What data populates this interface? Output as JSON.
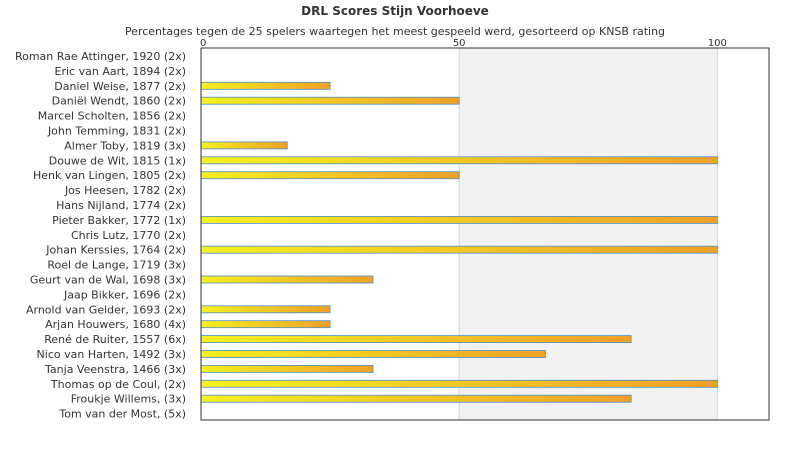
{
  "chart_data": {
    "type": "bar",
    "orientation": "horizontal",
    "title": "DRL Scores Stijn Voorhoeve",
    "subtitle": "Percentages tegen de 25 spelers waartegen het meest gespeeld werd, gesorteerd op KNSB rating",
    "xlim": [
      0,
      110
    ],
    "xticks": [
      0,
      50,
      100
    ],
    "grid": true,
    "categories": [
      "Roman Rae Attinger, 1920 (2x)",
      "Eric van Aart, 1894 (2x)",
      "Daniel Weise, 1877 (2x)",
      "Daniël Wendt, 1860 (2x)",
      "Marcel Scholten, 1856 (2x)",
      "John Temming, 1831 (2x)",
      "Almer Toby, 1819 (3x)",
      "Douwe de Wit, 1815 (1x)",
      "Henk van Lingen, 1805 (2x)",
      "Jos Heesen, 1782 (2x)",
      "Hans Nijland, 1774 (2x)",
      "Pieter Bakker, 1772 (1x)",
      "Chris Lutz, 1770 (2x)",
      "Johan Kerssies, 1764 (2x)",
      "Roel de Lange, 1719 (3x)",
      "Geurt van de Wal, 1698 (3x)",
      "Jaap Bikker, 1696 (2x)",
      "Arnold van Gelder, 1693 (2x)",
      "Arjan Houwers, 1680 (4x)",
      "René de Ruiter, 1557 (6x)",
      "Nico van Harten, 1492 (3x)",
      "Tanja Veenstra, 1466 (3x)",
      "Thomas op de Coul,  (2x)",
      "Froukje Willems,  (3x)",
      "Tom van der Most,  (5x)"
    ],
    "values": [
      0,
      0,
      25,
      50,
      0,
      0,
      16.7,
      100,
      50,
      0,
      0,
      100,
      0,
      100,
      0,
      33.3,
      0,
      25,
      25,
      83.3,
      66.7,
      33.3,
      100,
      83.3,
      0
    ],
    "colors": {
      "bar_start": "#f5f020",
      "bar_end": "#f0a028",
      "bar_edge": "#4a90c8",
      "band": "#f2f2f2",
      "axis": "#333333"
    }
  }
}
